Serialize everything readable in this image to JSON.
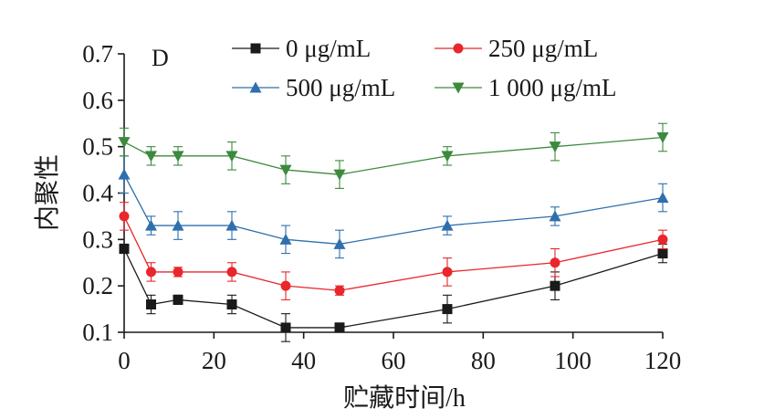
{
  "chart_data": {
    "type": "line",
    "panel_label": "D",
    "xlabel": "贮藏时间/h",
    "ylabel": "内聚性",
    "x": [
      0,
      6,
      12,
      24,
      36,
      48,
      72,
      96,
      120
    ],
    "xlim": [
      0,
      120
    ],
    "ylim": [
      0.1,
      0.7
    ],
    "xticks": [
      0,
      20,
      40,
      60,
      80,
      100,
      120
    ],
    "yticks": [
      0.1,
      0.2,
      0.3,
      0.4,
      0.5,
      0.6,
      0.7
    ],
    "xtick_labels": [
      "0",
      "20",
      "40",
      "60",
      "80",
      "100",
      "120"
    ],
    "ytick_labels": [
      "0.1",
      "0.2",
      "0.3",
      "0.4",
      "0.5",
      "0.6",
      "0.7"
    ],
    "legend_position": "top",
    "series": [
      {
        "name": "0 μg/mL",
        "color": "#1a1a1a",
        "marker": "square",
        "values": [
          0.28,
          0.16,
          0.17,
          0.16,
          0.11,
          0.11,
          0.15,
          0.2,
          0.27
        ],
        "errors": [
          0.01,
          0.02,
          0.01,
          0.02,
          0.03,
          0.01,
          0.03,
          0.03,
          0.02
        ]
      },
      {
        "name": "250 μg/mL",
        "color": "#e8262b",
        "marker": "circle",
        "values": [
          0.35,
          0.23,
          0.23,
          0.23,
          0.2,
          0.19,
          0.23,
          0.25,
          0.3
        ],
        "errors": [
          0.03,
          0.02,
          0.01,
          0.02,
          0.03,
          0.01,
          0.03,
          0.03,
          0.02
        ]
      },
      {
        "name": "500 μg/mL",
        "color": "#2f6fad",
        "marker": "triangle-up",
        "values": [
          0.44,
          0.33,
          0.33,
          0.33,
          0.3,
          0.29,
          0.33,
          0.35,
          0.39
        ],
        "errors": [
          0.04,
          0.02,
          0.03,
          0.03,
          0.03,
          0.03,
          0.02,
          0.02,
          0.03
        ]
      },
      {
        "name": "1 000 μg/mL",
        "color": "#3c8a3e",
        "marker": "triangle-down",
        "values": [
          0.51,
          0.48,
          0.48,
          0.48,
          0.45,
          0.44,
          0.48,
          0.5,
          0.52
        ],
        "errors": [
          0.03,
          0.02,
          0.02,
          0.03,
          0.03,
          0.03,
          0.02,
          0.03,
          0.03
        ]
      }
    ]
  }
}
